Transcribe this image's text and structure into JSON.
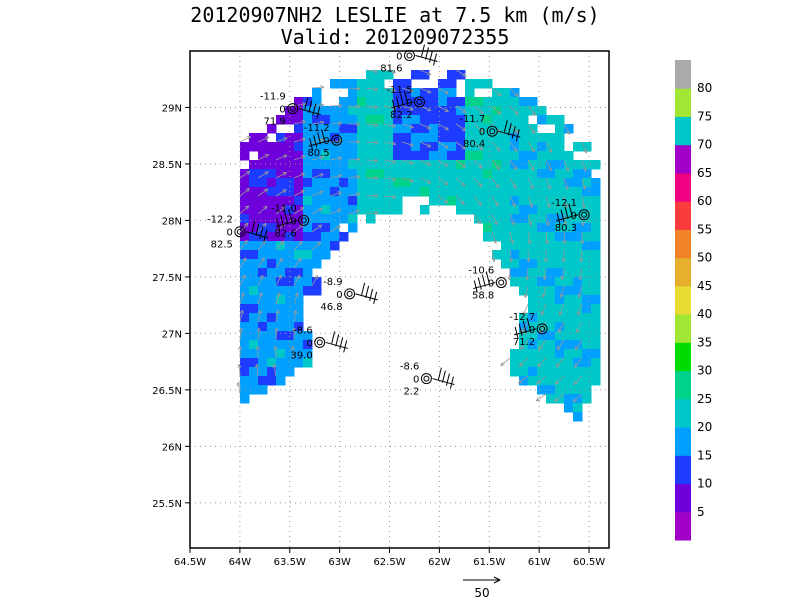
{
  "title": {
    "line1": "20120907NH2 LESLIE at 7.5 km (m/s)",
    "line2": "Valid: 201209072355"
  },
  "chart_data": {
    "type": "heatmap",
    "title": "20120907NH2 LESLIE at 7.5 km (m/s)",
    "subtitle": "Valid: 201209072355",
    "x_ticks": [
      "64.5W",
      "64W",
      "63.5W",
      "63W",
      "62.5W",
      "62W",
      "61.5W",
      "61W",
      "60.5W"
    ],
    "y_ticks": [
      "25.5N",
      "26N",
      "26.5N",
      "27N",
      "27.5N",
      "28N",
      "28.5N",
      "29N"
    ],
    "xlim": [
      -64.5,
      -60.3
    ],
    "ylim": [
      25.1,
      29.5
    ],
    "grid": true,
    "colorbar": {
      "levels": [
        "5",
        "10",
        "15",
        "20",
        "25",
        "30",
        "35",
        "40",
        "45",
        "50",
        "55",
        "60",
        "65",
        "70",
        "75",
        "80"
      ],
      "colors": [
        "#a000c8",
        "#6e00dc",
        "#1e3cff",
        "#00a0ff",
        "#00c8c8",
        "#00d28c",
        "#00dc00",
        "#a0e632",
        "#e6dc32",
        "#e6af2d",
        "#f08228",
        "#fa3c3c",
        "#f00082",
        "#a000c8",
        "#00c8c8",
        "#a0e632",
        "#aaaaaa"
      ]
    },
    "observations": [
      {
        "temp": "-11.9",
        "p": "0",
        "rh": "71.9",
        "lon": -63.47,
        "lat": 28.99
      },
      {
        "temp": "-11.2",
        "p": "0",
        "rh": "80.5",
        "lon": -63.03,
        "lat": 28.71
      },
      {
        "temp": "",
        "p": "0",
        "rh": "81.6",
        "lon": -62.3,
        "lat": 29.46
      },
      {
        "temp": "-11.5",
        "p": "0",
        "rh": "82.2",
        "lon": -62.2,
        "lat": 29.05
      },
      {
        "temp": "-11.7",
        "p": "0",
        "rh": "80.4",
        "lon": -61.47,
        "lat": 28.79
      },
      {
        "temp": "-12.1",
        "p": "0",
        "rh": "80.3",
        "lon": -60.55,
        "lat": 28.05
      },
      {
        "temp": "-12.2",
        "p": "0",
        "rh": "82.5",
        "lon": -64.0,
        "lat": 27.9
      },
      {
        "temp": "-11.0",
        "p": "0",
        "rh": "82.6",
        "lon": -63.36,
        "lat": 28.0
      },
      {
        "temp": "-8.9",
        "p": "0",
        "rh": "46.8",
        "lon": -62.9,
        "lat": 27.35
      },
      {
        "temp": "-10.6",
        "p": "0",
        "rh": "58.8",
        "lon": -61.38,
        "lat": 27.45
      },
      {
        "temp": "-8.6",
        "p": "0",
        "rh": "39.0",
        "lon": -63.2,
        "lat": 26.92
      },
      {
        "temp": "-12.7",
        "p": "0",
        "rh": "71.2",
        "lon": -60.97,
        "lat": 27.04
      },
      {
        "temp": "-8.6",
        "p": "0",
        "rh": "2.2",
        "lon": -62.13,
        "lat": 26.6
      }
    ],
    "reference_vector": {
      "label": "50"
    }
  }
}
